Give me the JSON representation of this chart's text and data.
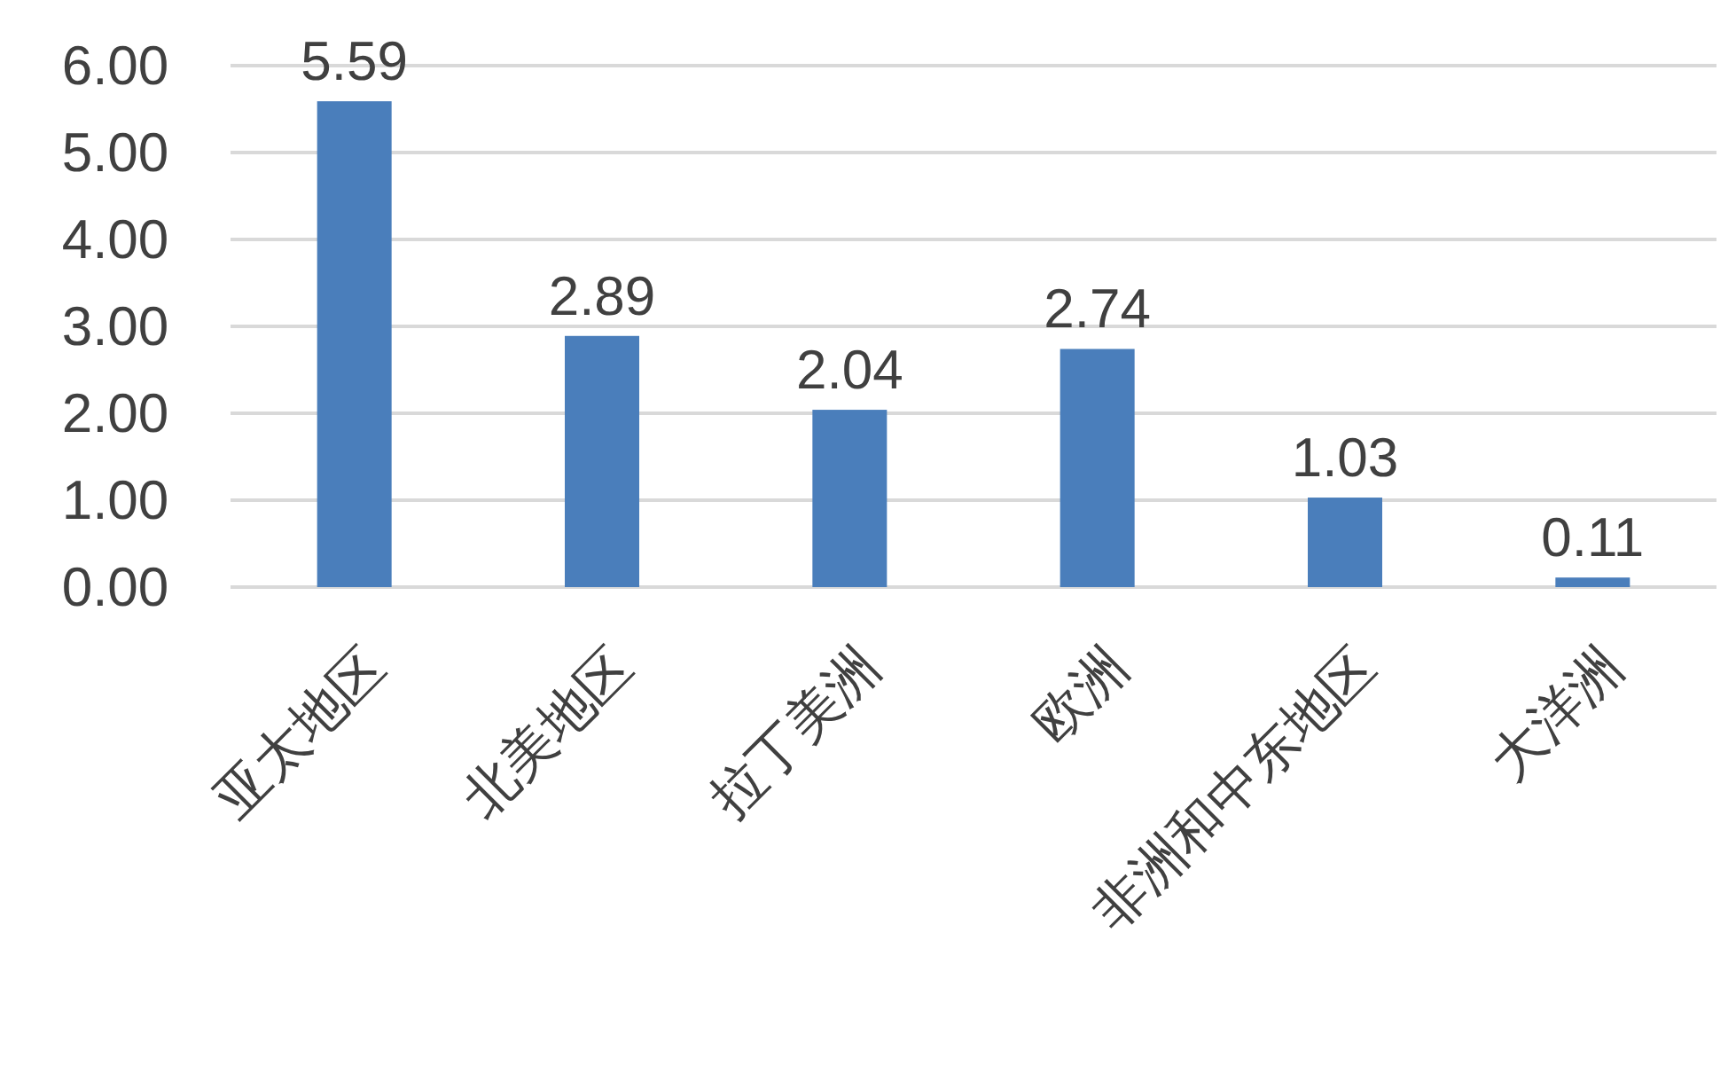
{
  "chart_data": {
    "type": "bar",
    "categories": [
      "亚太地区",
      "北美地区",
      "拉丁美洲",
      "欧洲",
      "非洲和中东地区",
      "大洋洲"
    ],
    "values": [
      5.59,
      2.89,
      2.04,
      2.74,
      1.03,
      0.11
    ],
    "color": "#4a7ebb",
    "ylim": [
      0,
      6
    ],
    "yticks": [
      {
        "value": 0,
        "label": "0.00"
      },
      {
        "value": 1,
        "label": "1.00"
      },
      {
        "value": 2,
        "label": "2.00"
      },
      {
        "value": 3,
        "label": "3.00"
      },
      {
        "value": 4,
        "label": "4.00"
      },
      {
        "value": 5,
        "label": "5.00"
      },
      {
        "value": 6,
        "label": "6.00"
      }
    ],
    "grid": "y",
    "data_labels": true
  }
}
